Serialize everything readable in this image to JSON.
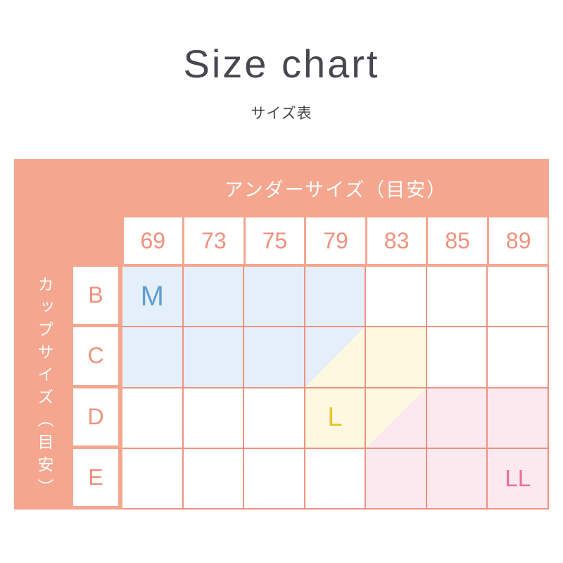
{
  "page": {
    "title": "Size chart",
    "subtitle": "サイズ表",
    "title_color": "#47474F",
    "subtitle_color": "#45454B"
  },
  "chart_data": {
    "type": "table",
    "title": "Size chart",
    "subtitle": "サイズ表",
    "column_axis_label": "アンダーサイズ（目安）",
    "row_axis_label": "カップサイズ（目安）",
    "columns": [
      "69",
      "73",
      "75",
      "79",
      "83",
      "85",
      "89"
    ],
    "rows": [
      "B",
      "C",
      "D",
      "E"
    ],
    "cells": [
      [
        "blue",
        "blue",
        "blue",
        "blue",
        "white",
        "white",
        "white"
      ],
      [
        "blue",
        "blue",
        "blue",
        "blue-yellow",
        "yellow",
        "white",
        "white"
      ],
      [
        "white",
        "white",
        "white",
        "yellow",
        "yellow-pink",
        "pink",
        "pink"
      ],
      [
        "white",
        "white",
        "white",
        "white",
        "pink",
        "pink",
        "pink"
      ]
    ],
    "size_labels": [
      {
        "label": "M",
        "row": "B",
        "col": "69",
        "color_key": "blue"
      },
      {
        "label": "L",
        "row": "D",
        "col": "79",
        "color_key": "yellow"
      },
      {
        "label": "LL",
        "row": "E",
        "col": "89",
        "color_key": "pink"
      }
    ],
    "colors": {
      "panel": "#F5A68F",
      "grid_line": "#EE9280",
      "header_text": "#F0907C",
      "axis_text": "#FFFFFF",
      "fill_white": "#FFFFFF",
      "fill_blue": "#E5EFFA",
      "fill_yellow": "#FDF9E1",
      "fill_pink": "#FBE9EF",
      "label_blue": "#5F9CD1",
      "label_yellow": "#EDC32F",
      "label_pink": "#ED6F8D"
    }
  }
}
